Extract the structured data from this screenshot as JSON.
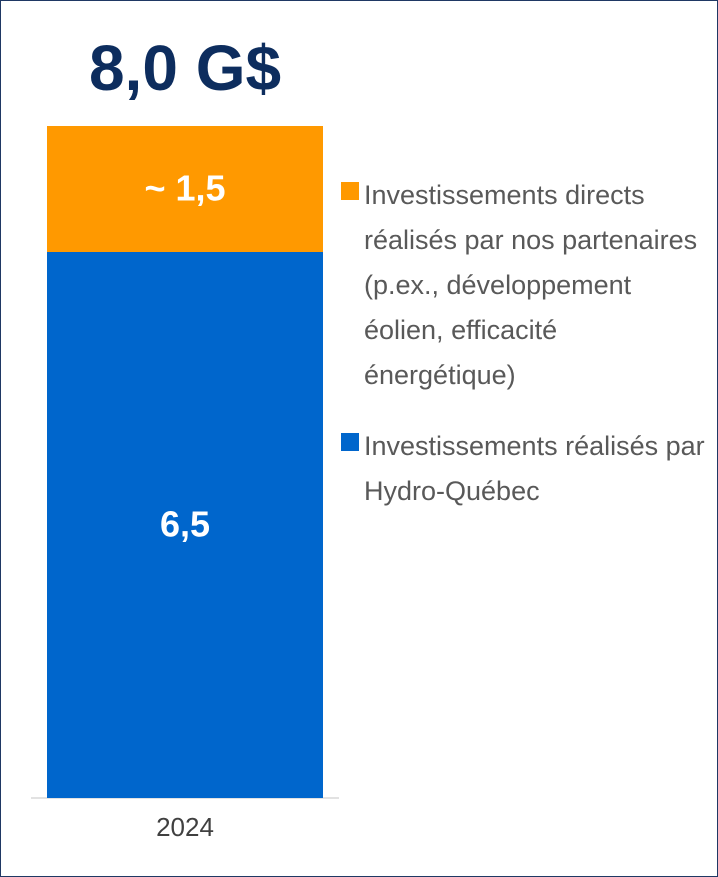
{
  "chart_data": {
    "type": "stacked_bar",
    "title": "8,0 G$",
    "categories": [
      "2024"
    ],
    "series": [
      {
        "name": "Investissements réalisés par Hydro-Québec",
        "color": "#0066cc",
        "values": [
          6.5
        ],
        "value_labels": [
          "6,5"
        ]
      },
      {
        "name": "Investissements directs réalisés par nos partenaires (p.ex., développement éolien, efficacité énergétique)",
        "color": "#ff9900",
        "values": [
          1.5
        ],
        "value_labels": [
          "~ 1,5"
        ]
      }
    ]
  }
}
